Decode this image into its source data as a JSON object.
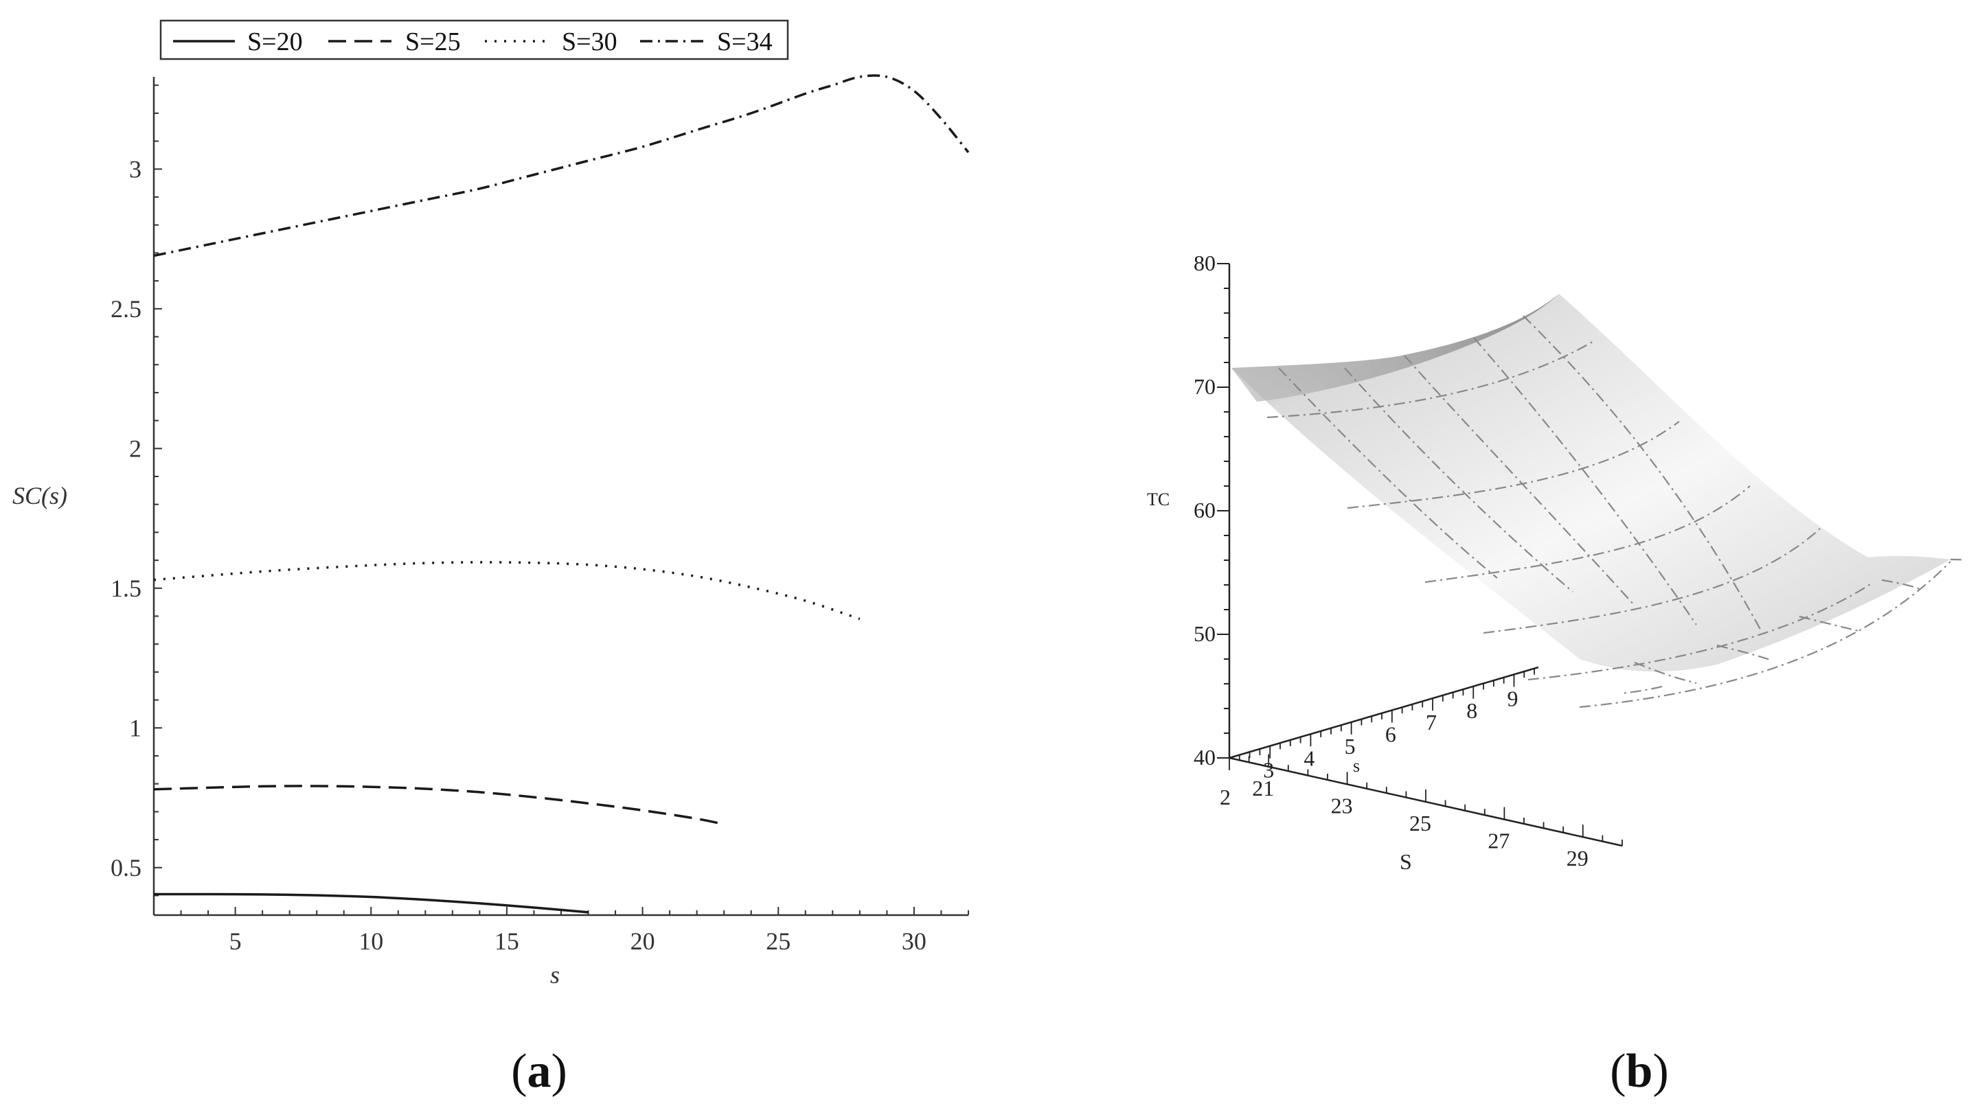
{
  "chart_data": [
    {
      "type": "line",
      "panel": "(a)",
      "panel_letter": "a",
      "xlabel": "s",
      "ylabel": "SC(s)",
      "xlim": [
        2,
        32
      ],
      "ylim": [
        0.33,
        3.33
      ],
      "xticks": [
        "5",
        "10",
        "15",
        "20",
        "25",
        "30"
      ],
      "yticks": [
        "0.5",
        "1",
        "1.5",
        "2",
        "2.5",
        "3"
      ],
      "legend_position": "top",
      "series": [
        {
          "name": "S=20",
          "style": "solid",
          "x": [
            2,
            4,
            6,
            8,
            10,
            12,
            14,
            16,
            18
          ],
          "y": [
            0.405,
            0.405,
            0.404,
            0.401,
            0.395,
            0.385,
            0.372,
            0.357,
            0.34
          ]
        },
        {
          "name": "S=25",
          "style": "dashed",
          "x": [
            2,
            4,
            6,
            8,
            10,
            12,
            14,
            16,
            18,
            20,
            22,
            23
          ],
          "y": [
            0.78,
            0.786,
            0.791,
            0.792,
            0.789,
            0.782,
            0.77,
            0.752,
            0.73,
            0.705,
            0.675,
            0.655
          ]
        },
        {
          "name": "S=30",
          "style": "dotted",
          "x": [
            2,
            4,
            6,
            8,
            10,
            12,
            14,
            16,
            18,
            20,
            22,
            24,
            26,
            28
          ],
          "y": [
            1.53,
            1.545,
            1.56,
            1.572,
            1.582,
            1.59,
            1.593,
            1.591,
            1.584,
            1.568,
            1.542,
            1.503,
            1.455,
            1.39
          ]
        },
        {
          "name": "S=34",
          "style": "dash-dot",
          "x": [
            2,
            4,
            6,
            8,
            10,
            12,
            14,
            16,
            18,
            20,
            22,
            24,
            26,
            27,
            28,
            29,
            30,
            31,
            32
          ],
          "y": [
            2.69,
            2.73,
            2.77,
            2.81,
            2.85,
            2.89,
            2.93,
            2.98,
            3.03,
            3.08,
            3.14,
            3.2,
            3.27,
            3.3,
            3.33,
            3.33,
            3.28,
            3.18,
            3.06
          ]
        }
      ]
    },
    {
      "type": "surface3d",
      "panel": "(b)",
      "panel_letter": "b",
      "zlabel": "TC",
      "x_axis_label": "S",
      "y_axis_label": "s",
      "zlim": [
        40,
        80
      ],
      "z_ticks": [
        "40",
        "50",
        "60",
        "70",
        "80"
      ],
      "S_ticks": [
        "21",
        "23",
        "25",
        "27",
        "29"
      ],
      "s_ticks": [
        "2",
        "3",
        "4",
        "5",
        "6",
        "7",
        "8",
        "9"
      ],
      "S_range": [
        20,
        30
      ],
      "s_range": [
        2,
        9
      ],
      "surface_note": "TC(S, s) convex surface, minimum near S≈27, s≈9",
      "corner_values": {
        "S20_s2": 71.5,
        "S20_s9": 71.5,
        "S30_s2": 78.0,
        "S30_s9": 53.0
      }
    }
  ],
  "colors": {
    "line": "#1a1a1a",
    "axis": "#333333",
    "surface_light": "#f2f2f2",
    "surface_dark": "#7a7a7a",
    "grid3d": "#888888"
  }
}
